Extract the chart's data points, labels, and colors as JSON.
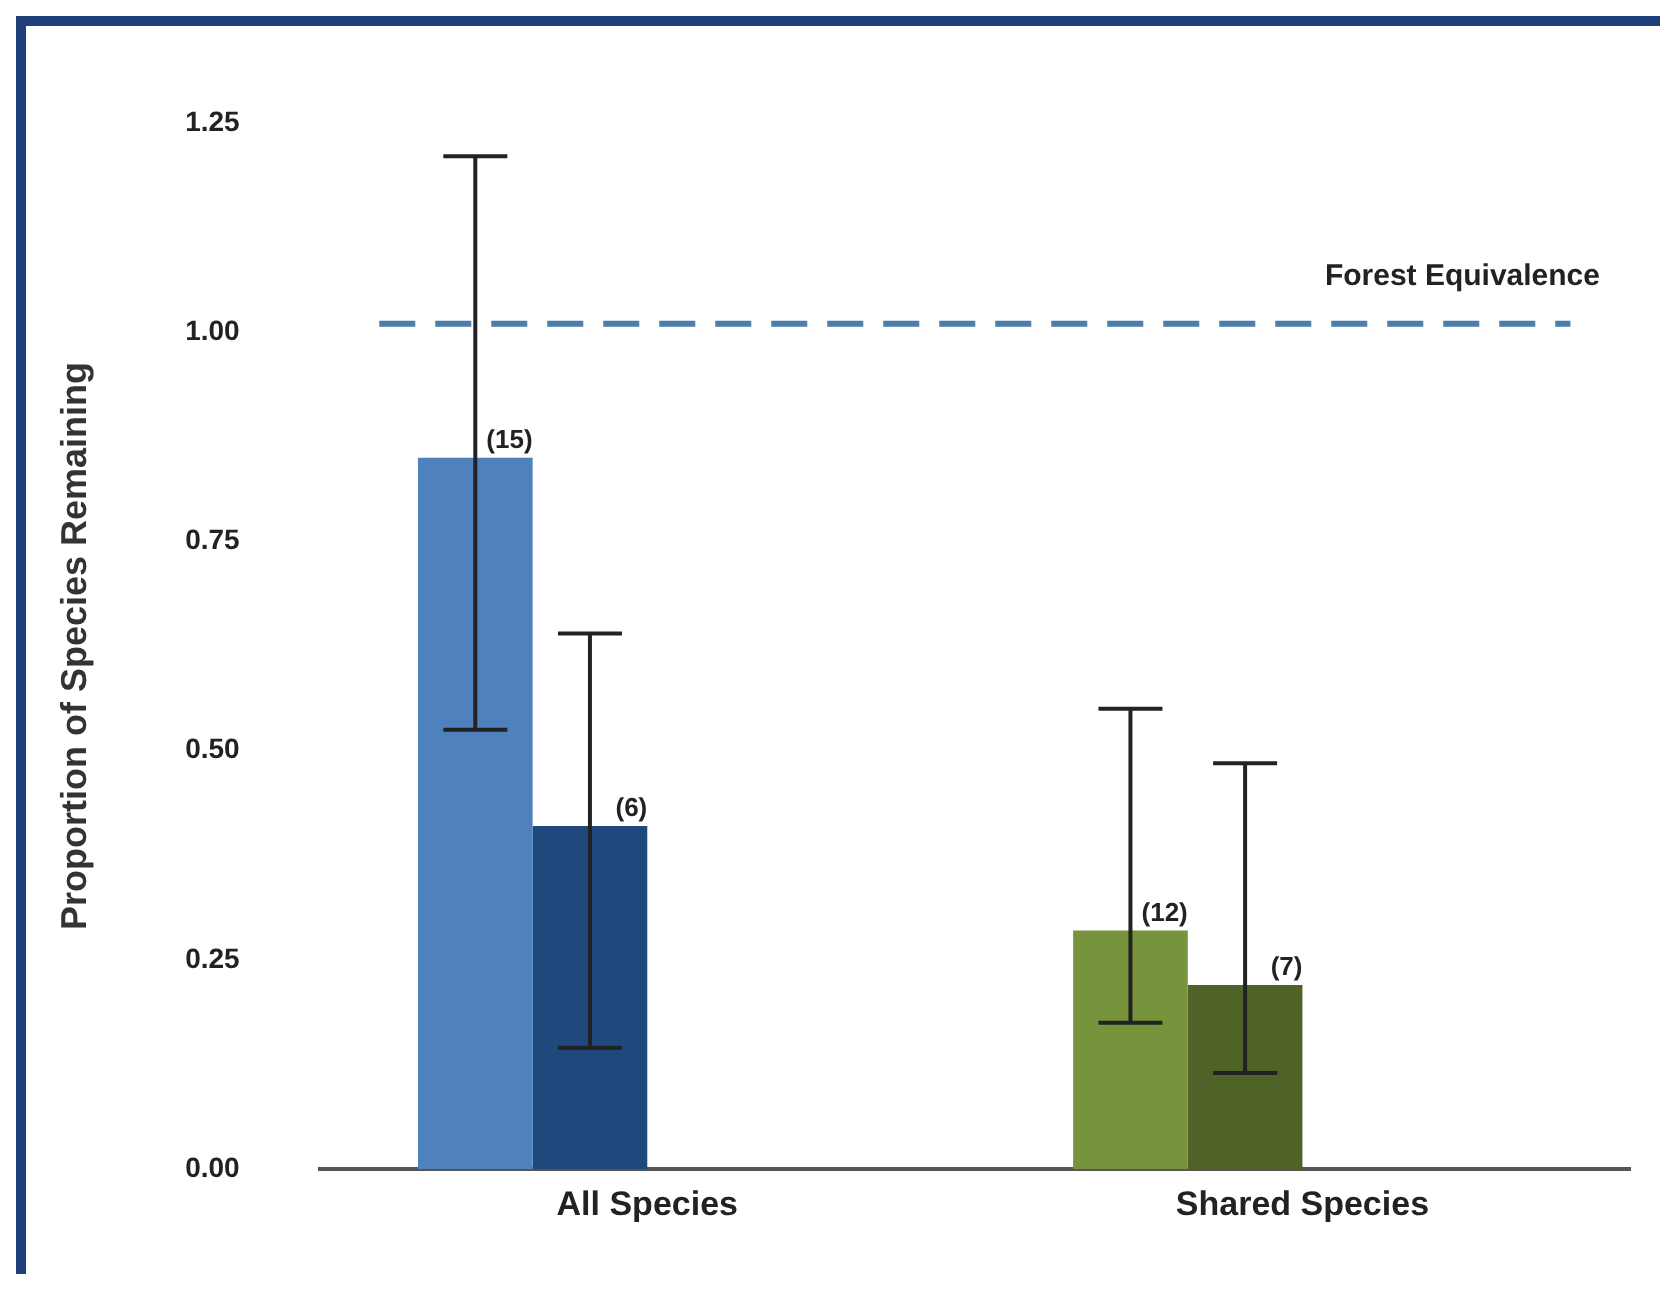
{
  "chart_data": {
    "type": "bar",
    "ylabel": "Proportion of Species Remaining",
    "categories": [
      "All Species",
      "Shared Species"
    ],
    "series": [
      {
        "colors": [
          "#4f81bd",
          "#77933c"
        ],
        "values": [
          0.85,
          0.285
        ],
        "errors": [
          [
            0.525,
            1.21
          ],
          [
            0.175,
            0.55
          ]
        ]
      },
      {
        "colors": [
          "#1f497d",
          "#4f6228"
        ],
        "values": [
          0.41,
          0.22
        ],
        "errors": [
          [
            0.145,
            0.64
          ],
          [
            0.115,
            0.485
          ]
        ]
      }
    ],
    "ylim": [
      0,
      1.25
    ],
    "yticks": [
      {
        "value": 0,
        "label": "0.00"
      },
      {
        "value": 0.25,
        "label": "0.25"
      },
      {
        "value": 0.5,
        "label": "0.50"
      },
      {
        "value": 0.75,
        "label": "0.75"
      },
      {
        "value": 1,
        "label": "1.00"
      },
      {
        "value": 1.25,
        "label": "1.25"
      }
    ],
    "grid": false,
    "legend": false,
    "annotations": [
      {
        "text": "(15)",
        "y": 0.85
      },
      {
        "text": "(6)",
        "y": 0.41
      },
      {
        "text": "(12)",
        "y": 0.285
      },
      {
        "text": "(7)",
        "y": 0.22
      }
    ],
    "ref_lines": [
      {
        "axis": "y",
        "value": 1.01,
        "label": "Forest Equivalence",
        "color": "#4a7ea8",
        "line_style": "dashed"
      }
    ]
  }
}
